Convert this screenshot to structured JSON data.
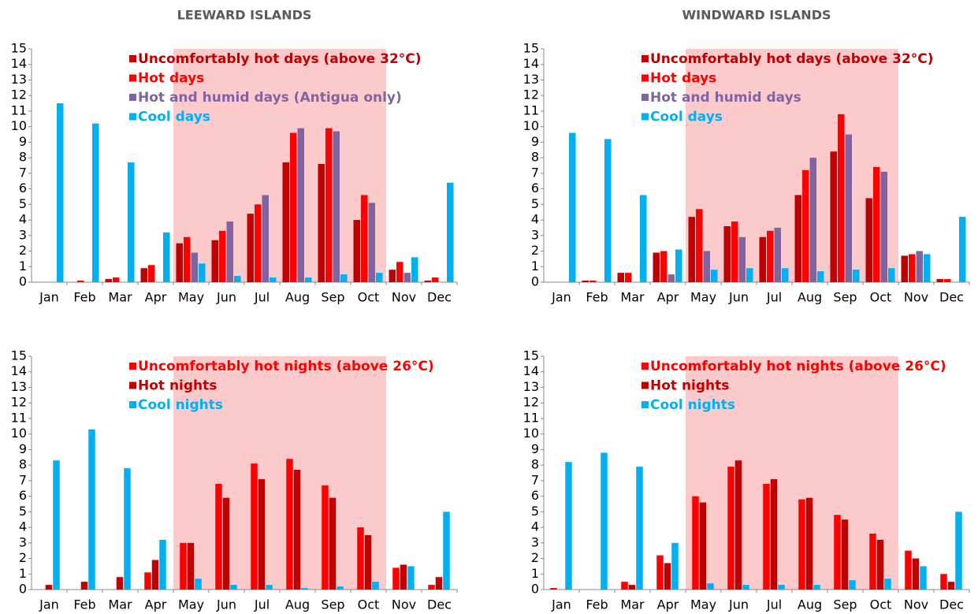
{
  "chart_data": [
    {
      "type": "bar",
      "title": "LEEWARD ISLANDS",
      "categories": [
        "Jan",
        "Feb",
        "Mar",
        "Apr",
        "May",
        "Jun",
        "Jul",
        "Aug",
        "Sep",
        "Oct",
        "Nov",
        "Dec"
      ],
      "series": [
        {
          "name": "Uncomfortably hot days (above 32°C)",
          "color": "#c00000",
          "values": [
            0,
            0,
            0.2,
            0.9,
            2.5,
            2.7,
            4.4,
            7.7,
            7.6,
            4.0,
            0.8,
            0.1
          ]
        },
        {
          "name": "Hot days",
          "color": "#ff0000",
          "values": [
            0,
            0.1,
            0.3,
            1.1,
            2.9,
            3.3,
            5.0,
            9.6,
            9.9,
            5.6,
            1.3,
            0.3
          ]
        },
        {
          "name": "Hot and humid days (Antigua only)",
          "color": "#8064a2",
          "values": [
            0,
            0,
            0,
            0,
            1.9,
            3.9,
            5.6,
            9.9,
            9.7,
            5.1,
            0.6,
            0
          ]
        },
        {
          "name": "Cool days",
          "color": "#00b0f0",
          "values": [
            11.5,
            10.2,
            7.7,
            3.2,
            1.2,
            0.4,
            0.3,
            0.3,
            0.5,
            0.6,
            1.6,
            6.4
          ]
        }
      ],
      "ylim": [
        0,
        15
      ],
      "yticks": [
        0,
        1,
        2,
        3,
        4,
        5,
        6,
        7,
        8,
        9,
        10,
        11,
        12,
        13,
        14,
        15
      ],
      "grid": false,
      "legend": "top"
    },
    {
      "type": "bar",
      "title": "WINDWARD ISLANDS",
      "categories": [
        "Jan",
        "Feb",
        "Mar",
        "Apr",
        "May",
        "Jun",
        "Jul",
        "Aug",
        "Sep",
        "Oct",
        "Nov",
        "Dec"
      ],
      "series": [
        {
          "name": "Uncomfortably hot days (above 32°C)",
          "color": "#c00000",
          "values": [
            0,
            0.1,
            0.6,
            1.9,
            4.2,
            3.6,
            2.9,
            5.6,
            8.4,
            5.4,
            1.7,
            0.2
          ]
        },
        {
          "name": "Hot days",
          "color": "#ff0000",
          "values": [
            0,
            0.1,
            0.6,
            2.0,
            4.7,
            3.9,
            3.3,
            7.2,
            10.8,
            7.4,
            1.8,
            0.2
          ]
        },
        {
          "name": "Hot and humid days",
          "color": "#8064a2",
          "values": [
            0,
            0,
            0,
            0.5,
            2.0,
            2.9,
            3.5,
            8.0,
            9.5,
            7.1,
            2.0,
            0
          ]
        },
        {
          "name": "Cool days",
          "color": "#00b0f0",
          "values": [
            9.6,
            9.2,
            5.6,
            2.1,
            0.8,
            0.9,
            0.9,
            0.7,
            0.8,
            0.9,
            1.8,
            4.2
          ]
        }
      ],
      "ylim": [
        0,
        15
      ],
      "yticks": [
        0,
        1,
        2,
        3,
        4,
        5,
        6,
        7,
        8,
        9,
        10,
        11,
        12,
        13,
        14,
        15
      ],
      "grid": false,
      "legend": "top"
    },
    {
      "type": "bar",
      "categories": [
        "Jan",
        "Feb",
        "Mar",
        "Apr",
        "May",
        "Jun",
        "Jul",
        "Aug",
        "Sep",
        "Oct",
        "Nov",
        "Dec"
      ],
      "series": [
        {
          "name": "Uncomfortably hot nights (above 26°C)",
          "color": "#ff0000",
          "values": [
            0,
            0,
            0,
            1.1,
            3.0,
            6.8,
            8.1,
            8.4,
            6.7,
            4.0,
            1.4,
            0.3
          ]
        },
        {
          "name": "Hot nights",
          "color": "#c00000",
          "values": [
            0.3,
            0.5,
            0.8,
            1.9,
            3.0,
            5.9,
            7.1,
            7.7,
            5.9,
            3.5,
            1.6,
            0.8
          ]
        },
        {
          "name": "Cool nights",
          "color": "#00b0f0",
          "values": [
            8.3,
            10.3,
            7.8,
            3.2,
            0.7,
            0.3,
            0.3,
            0.1,
            0.2,
            0.5,
            1.5,
            5.0
          ]
        }
      ],
      "ylim": [
        0,
        15
      ],
      "yticks": [
        0,
        1,
        2,
        3,
        4,
        5,
        6,
        7,
        8,
        9,
        10,
        11,
        12,
        13,
        14,
        15
      ],
      "grid": false,
      "legend": "top"
    },
    {
      "type": "bar",
      "categories": [
        "Jan",
        "Feb",
        "Mar",
        "Apr",
        "May",
        "Jun",
        "Jul",
        "Aug",
        "Sep",
        "Oct",
        "Nov",
        "Dec"
      ],
      "series": [
        {
          "name": "Uncomfortably hot nights (above 26°C)",
          "color": "#ff0000",
          "values": [
            0.1,
            0,
            0.5,
            2.2,
            6.0,
            7.9,
            6.8,
            5.8,
            4.8,
            3.6,
            2.5,
            1.0
          ]
        },
        {
          "name": "Hot nights",
          "color": "#c00000",
          "values": [
            0,
            0,
            0.3,
            1.7,
            5.6,
            8.3,
            7.1,
            5.9,
            4.5,
            3.2,
            2.0,
            0.5
          ]
        },
        {
          "name": "Cool nights",
          "color": "#00b0f0",
          "values": [
            8.2,
            8.8,
            7.9,
            3.0,
            0.4,
            0.3,
            0.3,
            0.3,
            0.6,
            0.7,
            1.5,
            5.0
          ]
        }
      ],
      "ylim": [
        0,
        15
      ],
      "yticks": [
        0,
        1,
        2,
        3,
        4,
        5,
        6,
        7,
        8,
        9,
        10,
        11,
        12,
        13,
        14,
        15
      ],
      "grid": false,
      "legend": "top"
    }
  ]
}
